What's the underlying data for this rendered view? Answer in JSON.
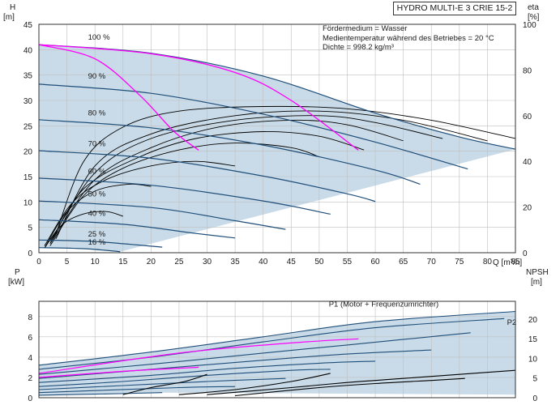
{
  "title": "HYDRO MULTI-E 3 CRIE 15-2",
  "info": {
    "line1": "Fördermedium = Wasser",
    "line2": "Medientemperatur während des Betriebes = 20 °C",
    "line3": "Dichte = 998.2 kg/m³"
  },
  "colors": {
    "curve": "#1f4e79",
    "envelope": "#c9dbe8",
    "system": "#ff00ff",
    "grid": "#bfbfbf",
    "npsh": "#000000"
  },
  "chart_data": [
    {
      "type": "line",
      "name": "top",
      "y_label": "H",
      "y_unit": "[m]",
      "y2_label": "eta",
      "y2_unit": "[%]",
      "x_axis_label": "Q [m³/h]",
      "xlim": [
        0,
        85
      ],
      "ylim": [
        0,
        45
      ],
      "y2lim": [
        0,
        100
      ],
      "x_ticks": [
        0,
        5,
        10,
        15,
        20,
        25,
        30,
        35,
        40,
        45,
        50,
        55,
        60,
        65,
        70,
        75,
        80,
        85
      ],
      "y_ticks": [
        0,
        5,
        10,
        15,
        20,
        25,
        30,
        35,
        40,
        45
      ],
      "y2_ticks": [
        0,
        20,
        40,
        60,
        80,
        100
      ],
      "grid": true,
      "speed_curves": [
        {
          "label": "100 %",
          "label_q": 5,
          "label_h": 41.5,
          "points": [
            [
              0,
              41
            ],
            [
              20,
              39.3
            ],
            [
              40,
              34.8
            ],
            [
              60,
              27.5
            ],
            [
              75,
              22.8
            ],
            [
              85,
              20.4
            ]
          ]
        },
        {
          "label": "90 %",
          "label_q": 5,
          "label_h": 33.8,
          "points": [
            [
              0,
              33.2
            ],
            [
              20,
              31.4
            ],
            [
              40,
              27.3
            ],
            [
              60,
              21.8
            ],
            [
              76.5,
              16.5
            ]
          ]
        },
        {
          "label": "80 %",
          "label_q": 5,
          "label_h": 26.6,
          "points": [
            [
              0,
              26.2
            ],
            [
              20,
              24.6
            ],
            [
              40,
              21.2
            ],
            [
              60,
              16.3
            ],
            [
              68,
              13.5
            ]
          ]
        },
        {
          "label": "70 %",
          "label_q": 5,
          "label_h": 20.5,
          "points": [
            [
              0,
              20.1
            ],
            [
              20,
              18.6
            ],
            [
              40,
              15.1
            ],
            [
              55,
              11.6
            ],
            [
              60,
              10.1
            ]
          ]
        },
        {
          "label": "60 %",
          "label_q": 5,
          "label_h": 15.1,
          "points": [
            [
              0,
              14.7
            ],
            [
              20,
              13.3
            ],
            [
              40,
              10.2
            ],
            [
              52,
              7.6
            ]
          ]
        },
        {
          "label": "50 %",
          "label_q": 5,
          "label_h": 10.6,
          "points": [
            [
              0,
              10.2
            ],
            [
              20,
              8.9
            ],
            [
              35,
              6.3
            ],
            [
              44,
              4.6
            ]
          ]
        },
        {
          "label": "40 %",
          "label_q": 5,
          "label_h": 6.8,
          "points": [
            [
              0,
              6.5
            ],
            [
              15,
              5.6
            ],
            [
              28,
              3.8
            ],
            [
              35,
              2.9
            ]
          ]
        },
        {
          "label": "25 %",
          "label_q": 5,
          "label_h": 2.7,
          "points": [
            [
              0,
              2.5
            ],
            [
              10,
              2.2
            ],
            [
              22,
              1.1
            ]
          ]
        },
        {
          "label": "16 %",
          "label_q": 5,
          "label_h": 1.1,
          "points": [
            [
              0,
              1.0
            ],
            [
              8,
              0.8
            ],
            [
              14.5,
              0.2
            ]
          ]
        }
      ],
      "system_curves": [
        {
          "points": [
            [
              0,
              41
            ],
            [
              10,
              38.2
            ],
            [
              18,
              31
            ],
            [
              24,
              24
            ],
            [
              28.5,
              20.2
            ]
          ]
        },
        {
          "points": [
            [
              0,
              41
            ],
            [
              20,
              39.2
            ],
            [
              35,
              35.5
            ],
            [
              45,
              30
            ],
            [
              57,
              20.2
            ]
          ]
        }
      ],
      "efficiency_curves": [
        {
          "points": [
            [
              3,
              8
            ],
            [
              8,
              40
            ],
            [
              15,
              55
            ],
            [
              25,
              62
            ],
            [
              40,
              64
            ],
            [
              55,
              63
            ],
            [
              70,
              58
            ],
            [
              85,
              50
            ]
          ]
        },
        {
          "points": [
            [
              3,
              6
            ],
            [
              10,
              38
            ],
            [
              20,
              52
            ],
            [
              35,
              60
            ],
            [
              50,
              62
            ],
            [
              65,
              58
            ],
            [
              80,
              49
            ]
          ]
        },
        {
          "points": [
            [
              2,
              5
            ],
            [
              10,
              35
            ],
            [
              20,
              50
            ],
            [
              35,
              58
            ],
            [
              50,
              60
            ],
            [
              60,
              57
            ],
            [
              72,
              50
            ]
          ]
        },
        {
          "points": [
            [
              2,
              4
            ],
            [
              10,
              32
            ],
            [
              20,
              46
            ],
            [
              32,
              55
            ],
            [
              45,
              58
            ],
            [
              55,
              56
            ],
            [
              65,
              49
            ]
          ]
        },
        {
          "points": [
            [
              2,
              4
            ],
            [
              8,
              28
            ],
            [
              18,
              42
            ],
            [
              28,
              50
            ],
            [
              40,
              53
            ],
            [
              50,
              51
            ],
            [
              58,
              45
            ]
          ]
        },
        {
          "points": [
            [
              2,
              3
            ],
            [
              8,
              25
            ],
            [
              15,
              37
            ],
            [
              25,
              45
            ],
            [
              35,
              48
            ],
            [
              45,
              46
            ],
            [
              50,
              42
            ]
          ]
        },
        {
          "points": [
            [
              1,
              3
            ],
            [
              6,
              22
            ],
            [
              12,
              32
            ],
            [
              20,
              38
            ],
            [
              28,
              40
            ],
            [
              35,
              38
            ]
          ]
        },
        {
          "points": [
            [
              1,
              2
            ],
            [
              5,
              18
            ],
            [
              10,
              27
            ],
            [
              16,
              30
            ],
            [
              20,
              29
            ]
          ]
        },
        {
          "points": [
            [
              1,
              2
            ],
            [
              4,
              12
            ],
            [
              8,
              17
            ],
            [
              12,
              18
            ],
            [
              15,
              16
            ]
          ]
        }
      ]
    },
    {
      "type": "line",
      "name": "bottom",
      "y_label": "P",
      "y_unit": "[kW]",
      "y2_label": "NPSH",
      "y2_unit": "[m]",
      "xlim": [
        0,
        85
      ],
      "ylim": [
        0,
        9.5
      ],
      "y2lim": [
        0,
        24.5
      ],
      "y_ticks": [
        0,
        2,
        4,
        6,
        8
      ],
      "y2_ticks": [
        0,
        5,
        10,
        15,
        20
      ],
      "grid": true,
      "series_labels": [
        {
          "text": "P1 (Motor + Frequenzumrichter)",
          "q": 61.5,
          "p": 9.0
        },
        {
          "text": "P2",
          "q": 83.5,
          "p": 7.2
        }
      ],
      "power_curves": [
        {
          "points": [
            [
              0,
              3.2
            ],
            [
              20,
              4.5
            ],
            [
              40,
              6.0
            ],
            [
              60,
              7.5
            ],
            [
              85,
              8.5
            ]
          ]
        },
        {
          "points": [
            [
              0,
              2.8
            ],
            [
              20,
              4.0
            ],
            [
              40,
              5.5
            ],
            [
              60,
              6.9
            ],
            [
              83,
              7.8
            ]
          ]
        },
        {
          "points": [
            [
              0,
              2.3
            ],
            [
              20,
              3.3
            ],
            [
              40,
              4.4
            ],
            [
              55,
              5.2
            ],
            [
              77,
              6.4
            ]
          ]
        },
        {
          "points": [
            [
              0,
              1.9
            ],
            [
              20,
              2.8
            ],
            [
              40,
              3.7
            ],
            [
              55,
              4.3
            ],
            [
              70,
              4.7
            ]
          ]
        },
        {
          "points": [
            [
              0,
              1.5
            ],
            [
              20,
              2.2
            ],
            [
              35,
              2.9
            ],
            [
              50,
              3.4
            ],
            [
              60,
              3.6
            ]
          ]
        },
        {
          "points": [
            [
              0,
              1.1
            ],
            [
              15,
              1.6
            ],
            [
              30,
              2.2
            ],
            [
              45,
              2.7
            ],
            [
              52,
              2.8
            ]
          ]
        },
        {
          "points": [
            [
              0,
              0.8
            ],
            [
              15,
              1.2
            ],
            [
              30,
              1.6
            ],
            [
              44,
              1.9
            ]
          ]
        },
        {
          "points": [
            [
              0,
              0.5
            ],
            [
              10,
              0.7
            ],
            [
              25,
              1.0
            ],
            [
              35,
              1.1
            ]
          ]
        },
        {
          "points": [
            [
              0,
              0.25
            ],
            [
              10,
              0.35
            ],
            [
              22,
              0.5
            ]
          ]
        }
      ],
      "system_power_curves": [
        {
          "points": [
            [
              0,
              2.0
            ],
            [
              15,
              2.6
            ],
            [
              28.5,
              3.0
            ]
          ]
        },
        {
          "points": [
            [
              0,
              2.4
            ],
            [
              25,
              4.4
            ],
            [
              45,
              5.4
            ],
            [
              57,
              5.8
            ]
          ]
        }
      ],
      "npsh_curves": [
        {
          "points": [
            [
              30,
              0.3
            ],
            [
              45,
              1.0
            ],
            [
              55,
              1.5
            ],
            [
              65,
              1.9
            ],
            [
              75,
              2.3
            ],
            [
              85,
              2.7
            ]
          ]
        },
        {
          "points": [
            [
              35,
              0.2
            ],
            [
              50,
              1.0
            ],
            [
              60,
              1.4
            ],
            [
              70,
              1.7
            ],
            [
              76,
              1.9
            ]
          ]
        },
        {
          "points": [
            [
              15,
              0.3
            ],
            [
              20,
              1.0
            ],
            [
              26,
              1.6
            ],
            [
              30,
              2.3
            ]
          ]
        },
        {
          "points": [
            [
              25,
              0.3
            ],
            [
              35,
              0.8
            ],
            [
              45,
              1.6
            ],
            [
              52,
              2.4
            ]
          ]
        }
      ]
    }
  ]
}
